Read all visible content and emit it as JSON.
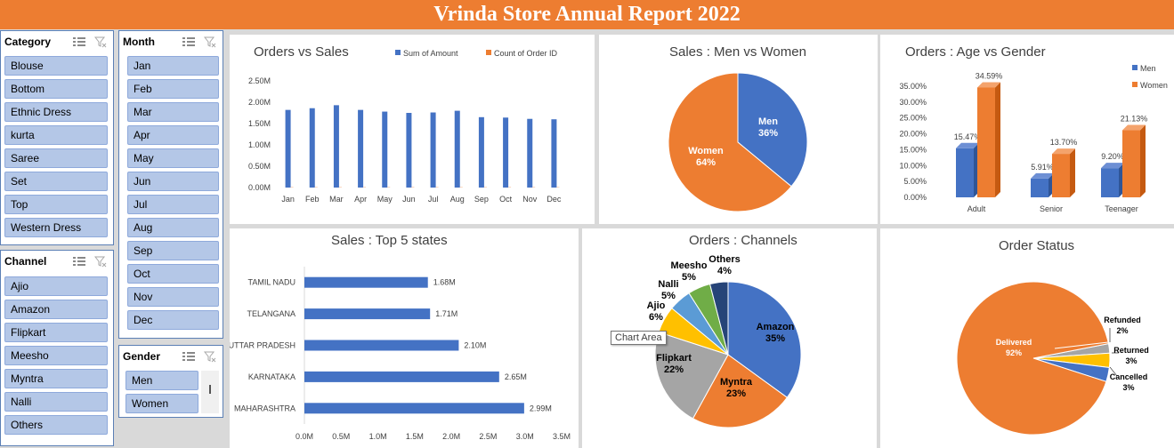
{
  "header": {
    "title": "Vrinda Store Annual Report 2022"
  },
  "colors": {
    "blue": "#4472c4",
    "orange": "#ed7d31",
    "gray": "#a5a5a5",
    "yellow": "#ffc000",
    "lightblue": "#5b9bd5",
    "green": "#70ad47",
    "navy": "#264478"
  },
  "slicers": {
    "category": {
      "label": "Category",
      "items": [
        "Blouse",
        "Bottom",
        "Ethnic Dress",
        "kurta",
        "Saree",
        "Set",
        "Top",
        "Western Dress"
      ]
    },
    "month": {
      "label": "Month",
      "items": [
        "Jan",
        "Feb",
        "Mar",
        "Apr",
        "May",
        "Jun",
        "Jul",
        "Aug",
        "Sep",
        "Oct",
        "Nov",
        "Dec"
      ]
    },
    "channel": {
      "label": "Channel",
      "items": [
        "Ajio",
        "Amazon",
        "Flipkart",
        "Meesho",
        "Myntra",
        "Nalli",
        "Others"
      ]
    },
    "gender": {
      "label": "Gender",
      "items": [
        "Men",
        "Women"
      ]
    }
  },
  "tooltip": "Chart Area",
  "chart_data": [
    {
      "type": "bar",
      "title": "Orders vs Sales",
      "legend": [
        "Sum of Amount",
        "Count of Order ID"
      ],
      "legend_position": "top-right",
      "categories": [
        "Jan",
        "Feb",
        "Mar",
        "Apr",
        "May",
        "Jun",
        "Jul",
        "Aug",
        "Sep",
        "Oct",
        "Nov",
        "Dec"
      ],
      "series": [
        {
          "name": "Sum of Amount",
          "values": [
            1.82,
            1.86,
            1.93,
            1.82,
            1.78,
            1.75,
            1.76,
            1.8,
            1.65,
            1.64,
            1.61,
            1.6
          ]
        },
        {
          "name": "Count of Order ID",
          "values": [
            0.0026,
            0.0027,
            0.0028,
            0.0026,
            0.0026,
            0.0025,
            0.0025,
            0.0026,
            0.0024,
            0.0024,
            0.0023,
            0.0023
          ]
        }
      ],
      "yticks": [
        "0.00M",
        "0.50M",
        "1.00M",
        "1.50M",
        "2.00M",
        "2.50M"
      ],
      "ylim": [
        0,
        2.5
      ]
    },
    {
      "type": "pie",
      "title": "Sales : Men vs Women",
      "slices": [
        {
          "label": "Men",
          "value": 36,
          "text": "36%"
        },
        {
          "label": "Women",
          "value": 64,
          "text": "64%"
        }
      ]
    },
    {
      "type": "bar",
      "title": "Orders : Age vs Gender",
      "legend": [
        "Men",
        "Women"
      ],
      "legend_position": "top-right",
      "categories": [
        "Adult",
        "Senior",
        "Teenager"
      ],
      "series": [
        {
          "name": "Men",
          "values": [
            15.47,
            5.91,
            9.2
          ],
          "labels": [
            "15.47%",
            "5.91%",
            "9.20%"
          ]
        },
        {
          "name": "Women",
          "values": [
            34.59,
            13.7,
            21.13
          ],
          "labels": [
            "34.59%",
            "13.70%",
            "21.13%"
          ]
        }
      ],
      "yticks": [
        "0.00%",
        "5.00%",
        "10.00%",
        "15.00%",
        "20.00%",
        "25.00%",
        "30.00%",
        "35.00%"
      ],
      "ylim": [
        0,
        35
      ]
    },
    {
      "type": "bar",
      "title": "Sales : Top 5 states",
      "orientation": "horizontal",
      "categories": [
        "TAMIL NADU",
        "TELANGANA",
        "UTTAR PRADESH",
        "KARNATAKA",
        "MAHARASHTRA"
      ],
      "values": [
        1.68,
        1.71,
        2.1,
        2.65,
        2.99
      ],
      "labels": [
        "1.68M",
        "1.71M",
        "2.10M",
        "2.65M",
        "2.99M"
      ],
      "xticks": [
        "0.0M",
        "0.5M",
        "1.0M",
        "1.5M",
        "2.0M",
        "2.5M",
        "3.0M",
        "3.5M"
      ],
      "xlim": [
        0,
        3.5
      ]
    },
    {
      "type": "pie",
      "title": "Orders : Channels",
      "slices": [
        {
          "label": "Amazon",
          "value": 35,
          "text": "35%"
        },
        {
          "label": "Myntra",
          "value": 23,
          "text": "23%"
        },
        {
          "label": "Flipkart",
          "value": 22,
          "text": "22%"
        },
        {
          "label": "Ajio",
          "value": 6,
          "text": "6%"
        },
        {
          "label": "Nalli",
          "value": 5,
          "text": "5%"
        },
        {
          "label": "Meesho",
          "value": 5,
          "text": "5%"
        },
        {
          "label": "Others",
          "value": 4,
          "text": "4%"
        }
      ]
    },
    {
      "type": "pie",
      "title": "Order Status",
      "slices": [
        {
          "label": "Delivered",
          "value": 92,
          "text": "92%"
        },
        {
          "label": "Refunded",
          "value": 2,
          "text": "2%"
        },
        {
          "label": "Returned",
          "value": 3,
          "text": "3%"
        },
        {
          "label": "Cancelled",
          "value": 3,
          "text": "3%"
        }
      ]
    }
  ]
}
